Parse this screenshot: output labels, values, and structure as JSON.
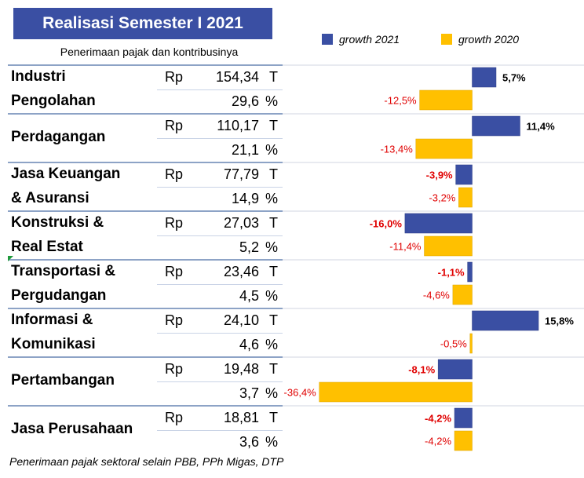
{
  "title": "Realisasi Semester I 2021",
  "subtitle": "Penerimaan pajak dan kontribusinya",
  "legend": {
    "growth_2021": "growth 2021",
    "growth_2020": "growth 2020"
  },
  "colors": {
    "title_bg": "#3A4FA3",
    "growth_2021": "#3A4FA3",
    "growth_2020": "#FFC000",
    "negative_label": "#E00000",
    "row_line": "#8DA3C6"
  },
  "currency": "Rp",
  "unit_amount": "T",
  "unit_share": "%",
  "sectors": [
    {
      "line1": "Industri",
      "line2": "Pengolahan",
      "amount": "154,34",
      "share": "29,6"
    },
    {
      "line1": "Perdagangan",
      "line2": "",
      "amount": "110,17",
      "share": "21,1"
    },
    {
      "line1": "Jasa Keuangan",
      "line2": "& Asuransi",
      "amount": "77,79",
      "share": "14,9"
    },
    {
      "line1": "Konstruksi &",
      "line2": "Real Estat",
      "amount": "27,03",
      "share": "5,2"
    },
    {
      "line1": "Transportasi &",
      "line2": "Pergudangan",
      "amount": "23,46",
      "share": "4,5"
    },
    {
      "line1": "Informasi &",
      "line2": "Komunikasi",
      "amount": "24,10",
      "share": "4,6"
    },
    {
      "line1": "Pertambangan",
      "line2": "",
      "amount": "19,48",
      "share": "3,7"
    },
    {
      "line1": "Jasa Perusahaan",
      "line2": "",
      "amount": "18,81",
      "share": "3,6"
    }
  ],
  "chart_data": {
    "type": "bar",
    "orientation": "horizontal",
    "categories": [
      "Industri Pengolahan",
      "Perdagangan",
      "Jasa Keuangan & Asuransi",
      "Konstruksi & Real Estat",
      "Transportasi & Pergudangan",
      "Informasi & Komunikasi",
      "Pertambangan",
      "Jasa Perusahaan"
    ],
    "series": [
      {
        "name": "growth 2021",
        "values": [
          5.7,
          11.4,
          -3.9,
          -16.0,
          -1.1,
          15.8,
          -8.1,
          -4.2
        ],
        "labels": [
          "5,7%",
          "11,4%",
          "-3,9%",
          "-16,0%",
          "-1,1%",
          "15,8%",
          "-8,1%",
          "-4,2%"
        ]
      },
      {
        "name": "growth 2020",
        "values": [
          -12.5,
          -13.4,
          -3.2,
          -11.4,
          -4.6,
          -0.5,
          -36.4,
          -4.2
        ],
        "labels": [
          "-12,5%",
          "-13,4%",
          "-3,2%",
          "-11,4%",
          "-4,6%",
          "-0,5%",
          "-36,4%",
          "-4,2%"
        ]
      }
    ],
    "legend_position": "top"
  },
  "footnote": "Penerimaan pajak sektoral selain PBB, PPh Migas, DTP"
}
